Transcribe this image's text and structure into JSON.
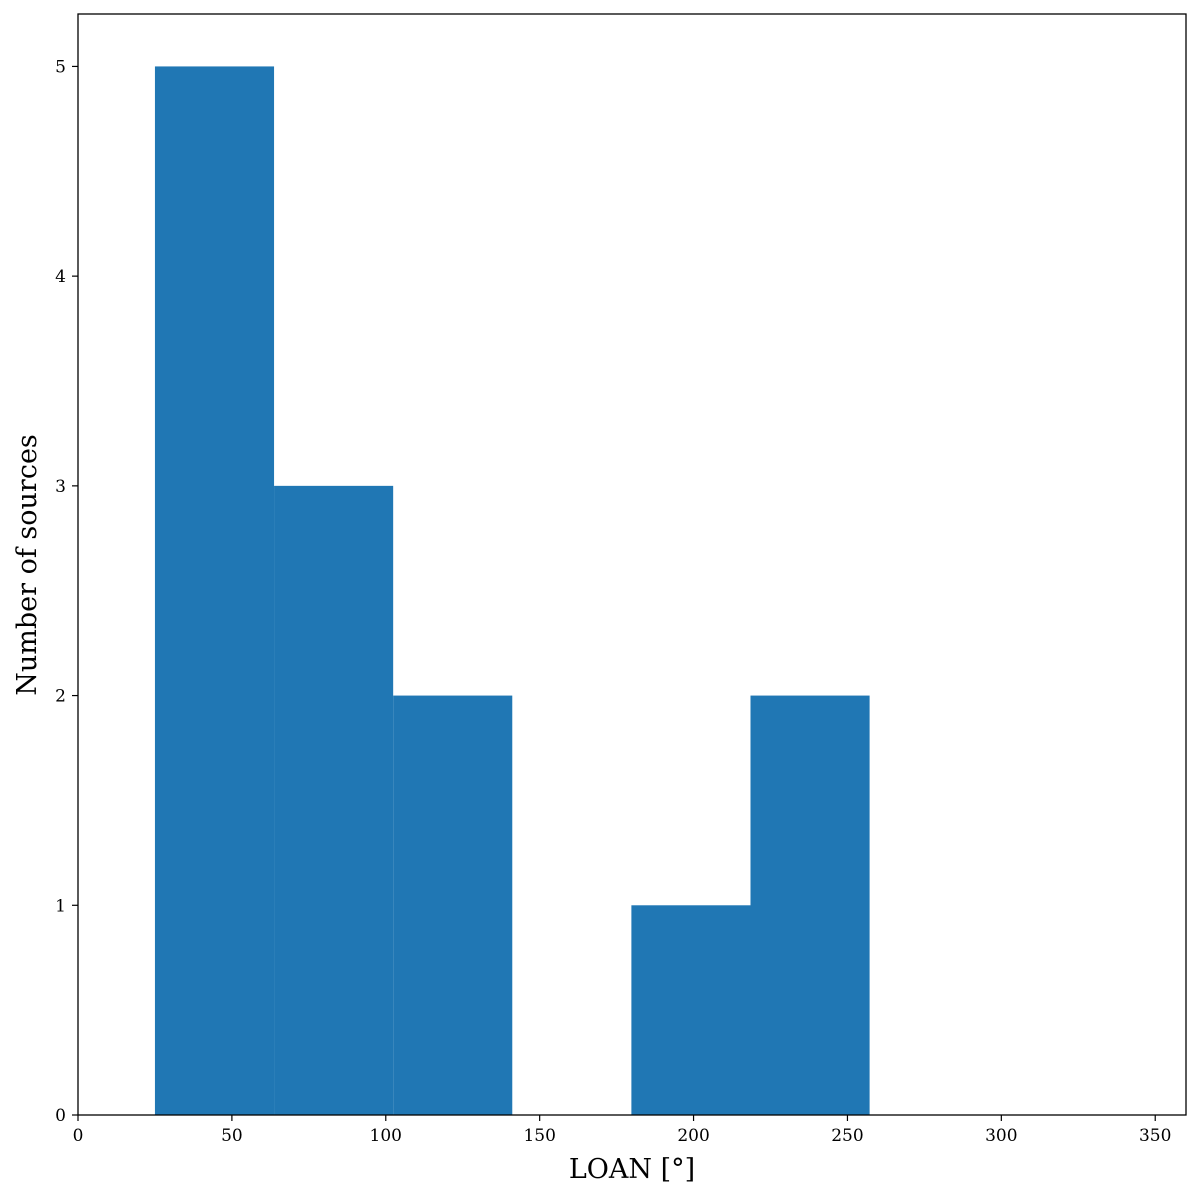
{
  "chart_data": {
    "type": "histogram",
    "x_label": "LOAN [°]",
    "y_label": "Number of sources",
    "bins": [
      25,
      63.7,
      102.4,
      141.1,
      179.8,
      218.5,
      257.2
    ],
    "values": [
      5,
      3,
      2,
      0,
      1,
      2
    ],
    "color": "#2077b4",
    "xlim": [
      0,
      360
    ],
    "ylim": [
      0,
      5.25
    ],
    "xticks": [
      0,
      50,
      100,
      150,
      200,
      250,
      300,
      350
    ],
    "yticks": [
      0,
      1,
      2,
      3,
      4,
      5
    ],
    "grid": false
  }
}
